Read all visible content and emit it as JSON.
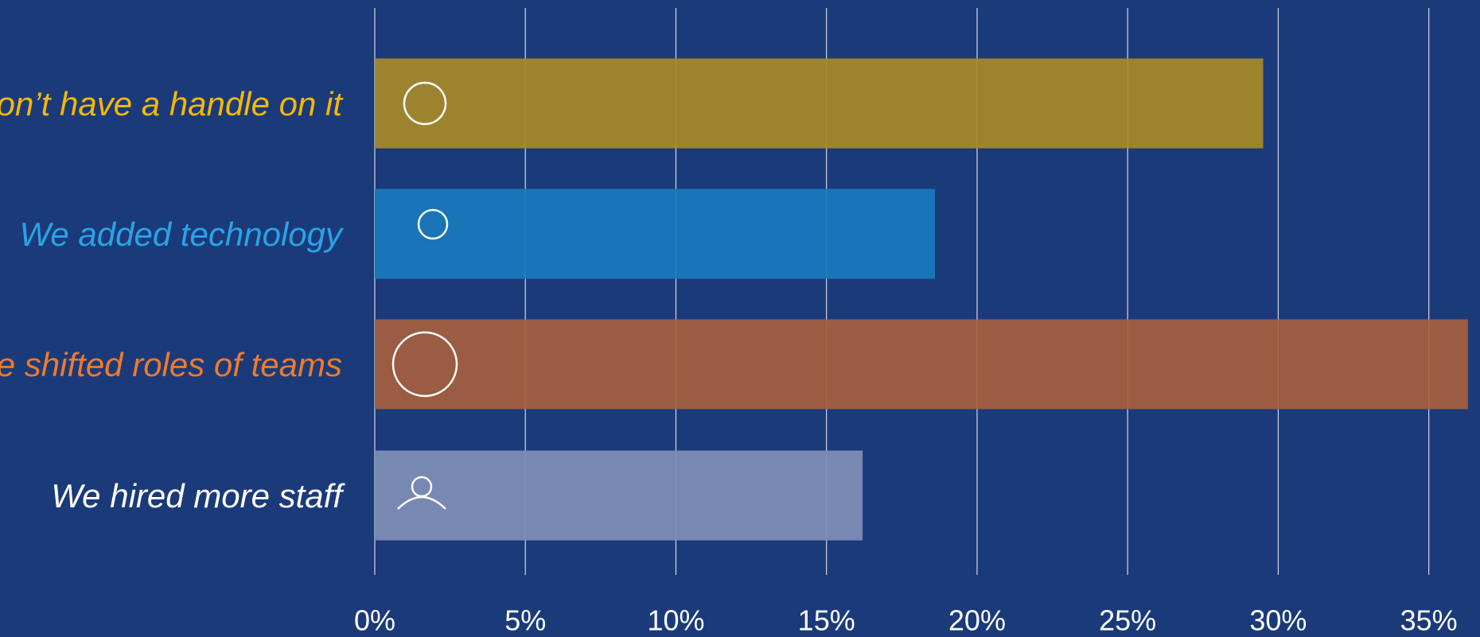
{
  "chart_data": {
    "type": "hbar",
    "categories": [
      "We don’t have a handle on it",
      "We added technology",
      "We shifted roles of teams",
      "We hired more staff"
    ],
    "values": [
      29.5,
      18.6,
      36.3,
      16.2
    ],
    "colors": [
      "#a98a28",
      "#1a7bbd",
      "#a55f3d",
      "#7f8fb6"
    ],
    "label_colors": [
      "#f5b800",
      "#29a3e6",
      "#f07a2a",
      "#ffffff"
    ],
    "xlim": [
      0,
      36.7
    ],
    "xticks": [
      {
        "value": 0,
        "label": "0%"
      },
      {
        "value": 5,
        "label": "5%"
      },
      {
        "value": 10,
        "label": "10%"
      },
      {
        "value": 15,
        "label": "15%"
      },
      {
        "value": 20,
        "label": "20%"
      },
      {
        "value": 25,
        "label": "25%"
      },
      {
        "value": 30,
        "label": "30%"
      },
      {
        "value": 35,
        "label": "35%"
      }
    ],
    "grid": true
  }
}
